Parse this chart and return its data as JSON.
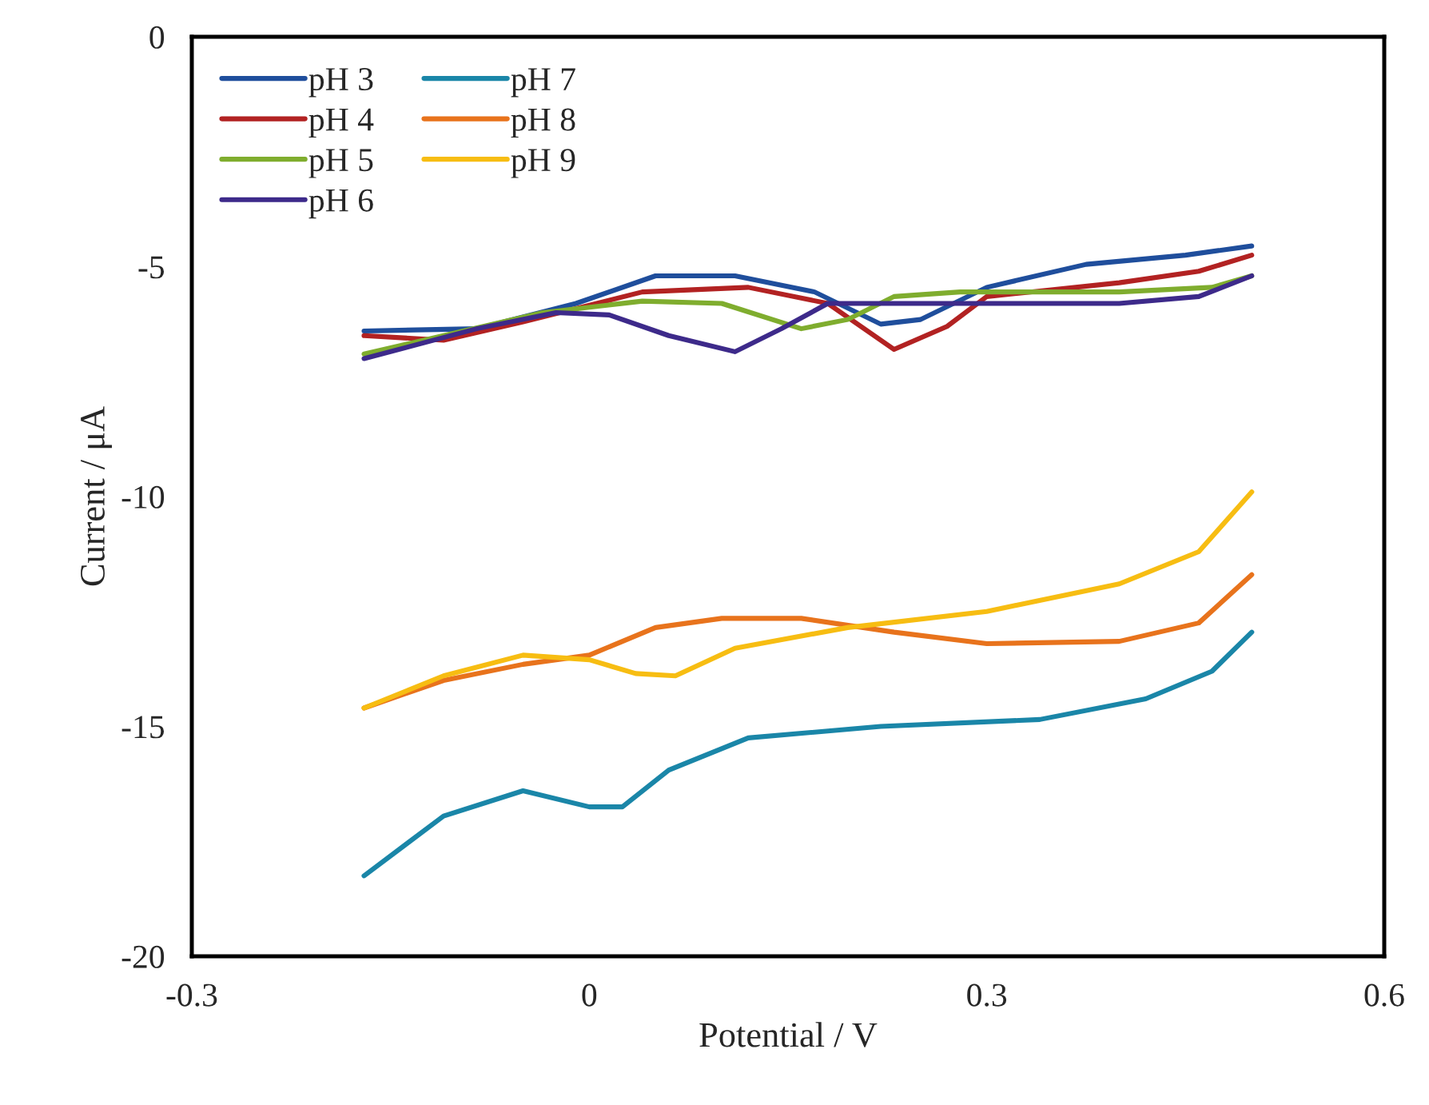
{
  "chart_data": {
    "type": "line",
    "xlabel": "Potential / V",
    "ylabel": "Current / μA",
    "xlim": [
      -0.3,
      0.6
    ],
    "xticks": [
      -0.3,
      0,
      0.3,
      0.6
    ],
    "ylim": [
      -20,
      0
    ],
    "yticks": [
      -20,
      -15,
      -10,
      -5,
      0
    ],
    "grid": false,
    "legend": "top left",
    "marker": "none",
    "line_style": "solid",
    "series": [
      {
        "name": "pH 3",
        "color": "#1f4e9c",
        "x": [
          -0.17,
          -0.085,
          -0.01,
          0.05,
          0.11,
          0.17,
          0.22,
          0.25,
          0.3,
          0.375,
          0.45,
          0.5
        ],
        "values": [
          -6.4,
          -6.35,
          -5.8,
          -5.2,
          -5.2,
          -5.55,
          -6.25,
          -6.15,
          -5.45,
          -4.95,
          -4.75,
          -4.55
        ]
      },
      {
        "name": "pH 4",
        "color": "#b22222",
        "x": [
          -0.17,
          -0.11,
          -0.05,
          0.04,
          0.12,
          0.18,
          0.23,
          0.27,
          0.3,
          0.4,
          0.46,
          0.5
        ],
        "values": [
          -6.5,
          -6.6,
          -6.2,
          -5.55,
          -5.45,
          -5.8,
          -6.8,
          -6.3,
          -5.65,
          -5.35,
          -5.1,
          -4.75
        ]
      },
      {
        "name": "pH 5",
        "color": "#7fad2e",
        "x": [
          -0.17,
          -0.11,
          -0.035,
          0.04,
          0.1,
          0.16,
          0.195,
          0.23,
          0.28,
          0.4,
          0.47,
          0.5
        ],
        "values": [
          -6.9,
          -6.5,
          -6.0,
          -5.75,
          -5.8,
          -6.35,
          -6.15,
          -5.65,
          -5.55,
          -5.55,
          -5.45,
          -5.2
        ]
      },
      {
        "name": "pH 6",
        "color": "#3d2a8a",
        "x": [
          -0.17,
          -0.085,
          -0.025,
          0.015,
          0.06,
          0.11,
          0.145,
          0.18,
          0.28,
          0.4,
          0.46,
          0.5
        ],
        "values": [
          -7.0,
          -6.35,
          -6.0,
          -6.05,
          -6.5,
          -6.85,
          -6.35,
          -5.8,
          -5.8,
          -5.8,
          -5.65,
          -5.2
        ]
      },
      {
        "name": "pH 7",
        "color": "#1a86a8",
        "x": [
          -0.17,
          -0.11,
          -0.05,
          0.0,
          0.025,
          0.06,
          0.12,
          0.22,
          0.34,
          0.42,
          0.47,
          0.5
        ],
        "values": [
          -18.25,
          -16.95,
          -16.4,
          -16.75,
          -16.75,
          -15.95,
          -15.25,
          -15.0,
          -14.85,
          -14.4,
          -13.8,
          -12.95
        ]
      },
      {
        "name": "pH 8",
        "color": "#e8731c",
        "x": [
          -0.17,
          -0.11,
          -0.05,
          0.0,
          0.05,
          0.1,
          0.16,
          0.23,
          0.3,
          0.4,
          0.46,
          0.5
        ],
        "values": [
          -14.6,
          -14.0,
          -13.65,
          -13.45,
          -12.85,
          -12.65,
          -12.65,
          -12.95,
          -13.2,
          -13.15,
          -12.75,
          -11.7
        ]
      },
      {
        "name": "pH 9",
        "color": "#f7bd12",
        "x": [
          -0.17,
          -0.11,
          -0.05,
          0.0,
          0.035,
          0.065,
          0.11,
          0.195,
          0.3,
          0.4,
          0.46,
          0.5
        ],
        "values": [
          -14.6,
          -13.9,
          -13.45,
          -13.55,
          -13.85,
          -13.9,
          -13.3,
          -12.85,
          -12.5,
          -11.9,
          -11.2,
          -9.9
        ]
      }
    ]
  }
}
